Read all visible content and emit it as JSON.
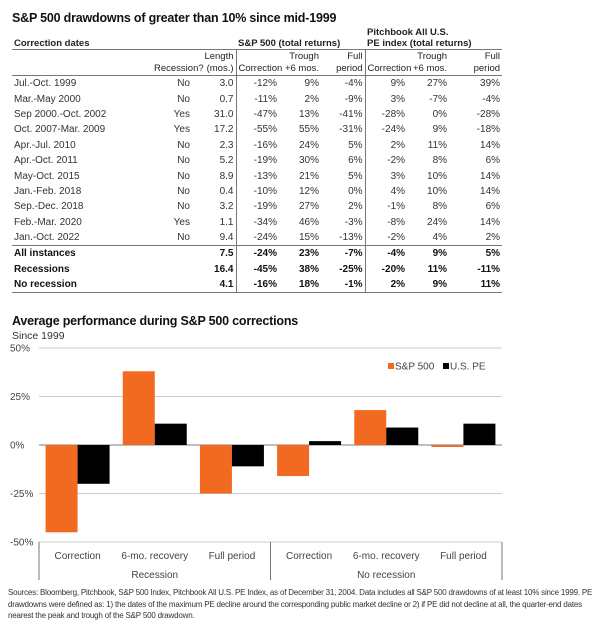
{
  "table": {
    "title": "S&P 500 drawdowns of greater than 10% since mid-1999",
    "group_headers": {
      "dates": "Correction dates",
      "sp": "S&P 500 (total returns)",
      "pe_line1": "Pitchbook All U.S.",
      "pe_line2": "PE index (total returns)"
    },
    "columns": [
      "Recession?",
      "Length (mos.)",
      "Correction",
      "Trough +6 mos.",
      "Full period",
      "Correction",
      "Trough +6 mos.",
      "Full period"
    ],
    "rows": [
      [
        "Jul.-Oct. 1999",
        "No",
        "3.0",
        "-12%",
        "9%",
        "-4%",
        "9%",
        "27%",
        "39%"
      ],
      [
        "Mar.-May 2000",
        "No",
        "0.7",
        "-11%",
        "2%",
        "-9%",
        "3%",
        "-7%",
        "-4%"
      ],
      [
        "Sep 2000.-Oct. 2002",
        "Yes",
        "31.0",
        "-47%",
        "13%",
        "-41%",
        "-28%",
        "0%",
        "-28%"
      ],
      [
        "Oct. 2007-Mar. 2009",
        "Yes",
        "17.2",
        "-55%",
        "55%",
        "-31%",
        "-24%",
        "9%",
        "-18%"
      ],
      [
        "Apr.-Jul. 2010",
        "No",
        "2.3",
        "-16%",
        "24%",
        "5%",
        "2%",
        "11%",
        "14%"
      ],
      [
        "Apr.-Oct. 2011",
        "No",
        "5.2",
        "-19%",
        "30%",
        "6%",
        "-2%",
        "8%",
        "6%"
      ],
      [
        "May-Oct. 2015",
        "No",
        "8.9",
        "-13%",
        "21%",
        "5%",
        "3%",
        "10%",
        "14%"
      ],
      [
        "Jan.-Feb. 2018",
        "No",
        "0.4",
        "-10%",
        "12%",
        "0%",
        "4%",
        "10%",
        "14%"
      ],
      [
        "Sep.-Dec. 2018",
        "No",
        "3.2",
        "-19%",
        "27%",
        "2%",
        "-1%",
        "8%",
        "6%"
      ],
      [
        "Feb.-Mar. 2020",
        "Yes",
        "1.1",
        "-34%",
        "46%",
        "-3%",
        "-8%",
        "24%",
        "14%"
      ],
      [
        "Jan.-Oct. 2022",
        "No",
        "9.4",
        "-24%",
        "15%",
        "-13%",
        "-2%",
        "4%",
        "2%"
      ]
    ],
    "summary": [
      [
        "All instances",
        "",
        "7.5",
        "-24%",
        "23%",
        "-7%",
        "-4%",
        "9%",
        "5%"
      ],
      [
        "Recessions",
        "",
        "16.4",
        "-45%",
        "38%",
        "-25%",
        "-20%",
        "11%",
        "-11%"
      ],
      [
        "No recession",
        "",
        "4.1",
        "-16%",
        "18%",
        "-1%",
        "2%",
        "9%",
        "11%"
      ]
    ]
  },
  "chart_data": {
    "type": "bar",
    "title": "Average performance during S&P 500 corrections",
    "subtitle": "Since 1999",
    "groups": [
      "Recession",
      "No recession"
    ],
    "categories": [
      "Correction",
      "6-mo. recovery",
      "Full period",
      "Correction",
      "6-mo. recovery",
      "Full period"
    ],
    "series": [
      {
        "name": "S&P 500",
        "color": "#f26a21",
        "values": [
          -45,
          38,
          -25,
          -16,
          18,
          -1
        ]
      },
      {
        "name": "U.S. PE",
        "color": "#000000",
        "values": [
          -20,
          11,
          -11,
          2,
          9,
          11
        ]
      }
    ],
    "yticks": [
      "50%",
      "25%",
      "0%",
      "-25%",
      "-50%"
    ],
    "ytick_values": [
      50,
      25,
      0,
      -25,
      -50
    ],
    "ylim": [
      -50,
      50
    ],
    "grid": true,
    "legend": "top-right"
  },
  "sources": "Sources: Bloomberg, Pitchbook, S&P 500 Index, Pitchbook All U.S. PE Index, as of December 31, 2004. Data includes all S&P 500 drawdowns of at least 10% since 1999. PE drawdowns were defined as: 1) the dates of the maximum PE decline around the corresponding public market decline or 2) if PE did not decline at all, the quarter-end dates nearest the peak and trough of the S&P 500 drawdown."
}
